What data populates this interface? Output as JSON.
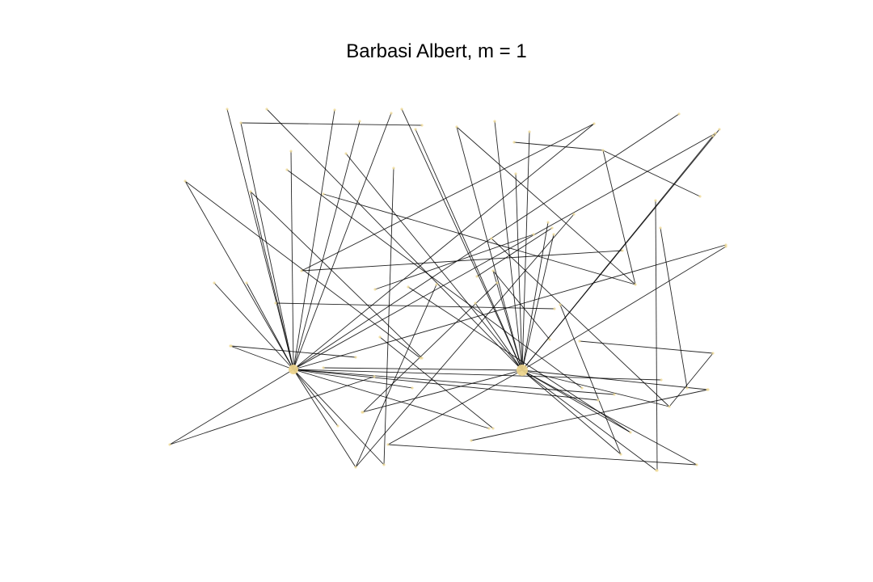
{
  "title": "Barbasi Albert, m = 1",
  "colors": {
    "background": "#ffffff",
    "edge": "#000000",
    "node": "#f0dc9a",
    "hub_node": "#ecd48c"
  },
  "chart_data": {
    "type": "network_graph",
    "title": "Barbasi Albert, m = 1",
    "model": "Barabasi-Albert",
    "m": 1,
    "hubs": [
      "hub-left",
      "hub-right"
    ],
    "edges": [
      [
        "hub-left",
        "n2"
      ],
      [
        "hub-left",
        "n3"
      ],
      [
        "hub-left",
        "n4"
      ],
      [
        "hub-left",
        "n5"
      ],
      [
        "hub-left",
        "n6"
      ],
      [
        "hub-left",
        "n7"
      ],
      [
        "hub-left",
        "n8"
      ],
      [
        "hub-left",
        "n9"
      ],
      [
        "hub-left",
        "n10"
      ],
      [
        "hub-left",
        "n11"
      ],
      [
        "hub-left",
        "n12"
      ],
      [
        "hub-left",
        "n13"
      ],
      [
        "hub-left",
        "n14"
      ],
      [
        "hub-left",
        "n15"
      ],
      [
        "hub-left",
        "n16"
      ],
      [
        "hub-left",
        "n17"
      ],
      [
        "hub-left",
        "n18"
      ],
      [
        "hub-left",
        "n19"
      ],
      [
        "hub-left",
        "n20"
      ],
      [
        "hub-left",
        "n21"
      ],
      [
        "hub-left",
        "n22"
      ],
      [
        "hub-left",
        "n23"
      ],
      [
        "hub-left",
        "n24"
      ],
      [
        "hub-left",
        "n25"
      ],
      [
        "hub-right",
        "n26"
      ],
      [
        "hub-right",
        "n27"
      ],
      [
        "hub-right",
        "n28"
      ],
      [
        "hub-right",
        "n29"
      ],
      [
        "hub-right",
        "n30"
      ],
      [
        "hub-right",
        "n31"
      ],
      [
        "hub-right",
        "n32"
      ],
      [
        "hub-right",
        "n33"
      ],
      [
        "hub-right",
        "n34"
      ],
      [
        "hub-right",
        "n35"
      ],
      [
        "hub-right",
        "n36"
      ],
      [
        "hub-right",
        "n37"
      ],
      [
        "hub-right",
        "n38"
      ],
      [
        "hub-right",
        "n39"
      ],
      [
        "hub-right",
        "n40"
      ],
      [
        "hub-right",
        "n41"
      ],
      [
        "hub-right",
        "n42"
      ],
      [
        "hub-right",
        "n43"
      ],
      [
        "hub-right",
        "n44"
      ],
      [
        "hub-right",
        "n45"
      ],
      [
        "hub-right",
        "n46"
      ],
      [
        "hub-right",
        "n47"
      ],
      [
        "hub-right",
        "n48"
      ],
      [
        "hub-right",
        "n49"
      ],
      [
        "n50",
        "n51"
      ],
      [
        "n52",
        "n53"
      ],
      [
        "n54",
        "n55"
      ],
      [
        "n56",
        "n57"
      ],
      [
        "n58",
        "n59"
      ],
      [
        "n60",
        "n61"
      ],
      [
        "n62",
        "n63"
      ],
      [
        "n64",
        "n65"
      ],
      [
        "n66",
        "n67"
      ],
      [
        "n68",
        "n69"
      ],
      [
        "n70",
        "n71"
      ],
      [
        "n72",
        "n73"
      ],
      [
        "n74",
        "n75"
      ],
      [
        "n76",
        "n77"
      ],
      [
        "n78",
        "n79"
      ],
      [
        "n80",
        "n81"
      ],
      [
        "n82",
        "n83"
      ],
      [
        "n84",
        "n85"
      ],
      [
        "n86",
        "n87"
      ],
      [
        "n88",
        "n89"
      ],
      [
        "n90",
        "n91"
      ],
      [
        "n92",
        "n93"
      ],
      [
        "n94",
        "n95"
      ],
      [
        "n96",
        "n97"
      ],
      [
        "n98",
        "n99"
      ],
      [
        "n100",
        "n101"
      ],
      [
        "n102",
        "n103"
      ],
      [
        "n104",
        "n105"
      ],
      [
        "n106",
        "n107"
      ],
      [
        "n108",
        "n109"
      ],
      [
        "n110",
        "n111"
      ]
    ]
  }
}
